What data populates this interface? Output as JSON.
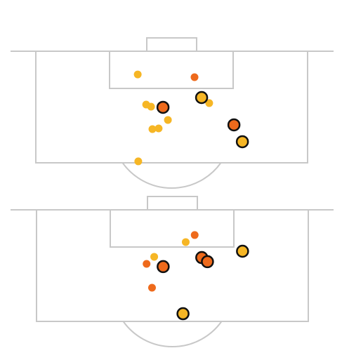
{
  "chart_data": [
    {
      "type": "scatter",
      "xlim": [
        0,
        100
      ],
      "ylim": [
        0,
        100
      ],
      "series": [
        {
          "color": "#f6b625",
          "outline": false,
          "x": [
            37.5,
            40.6,
            42.4,
            48.6,
            42.9,
            45.2,
            37.7,
            63.8,
            60.7
          ],
          "values": [
            20.8,
            47.8,
            49.7,
            61.6,
            69.8,
            69.2,
            98.7,
            46.5,
            39.6
          ]
        },
        {
          "color": "#ee6a1c",
          "outline": false,
          "x": [
            58.4
          ],
          "values": [
            23.3
          ]
        },
        {
          "color": "#f6b625",
          "outline": true,
          "x": [
            61.0,
            76.0
          ],
          "values": [
            41.5,
            81.1
          ]
        },
        {
          "color": "#ee6a1c",
          "outline": true,
          "x": [
            46.8,
            72.9
          ],
          "values": [
            50.3,
            66.0
          ]
        }
      ]
    },
    {
      "type": "scatter",
      "xlim": [
        0,
        100
      ],
      "ylim": [
        0,
        100
      ],
      "series": [
        {
          "color": "#f6b625",
          "outline": false,
          "x": [
            54.9,
            43.3
          ],
          "values": [
            28.9,
            42.1
          ]
        },
        {
          "color": "#ee6a1c",
          "outline": false,
          "x": [
            58.2,
            40.5,
            42.5
          ],
          "values": [
            22.6,
            48.4,
            69.8
          ]
        },
        {
          "color": "#f6b625",
          "outline": true,
          "x": [
            75.8,
            53.9
          ],
          "values": [
            37.1,
            93.1
          ]
        },
        {
          "color": "#ee6a1c",
          "outline": true,
          "x": [
            46.6,
            60.8,
            62.9
          ],
          "values": [
            50.9,
            42.8,
            46.5
          ]
        }
      ]
    }
  ]
}
